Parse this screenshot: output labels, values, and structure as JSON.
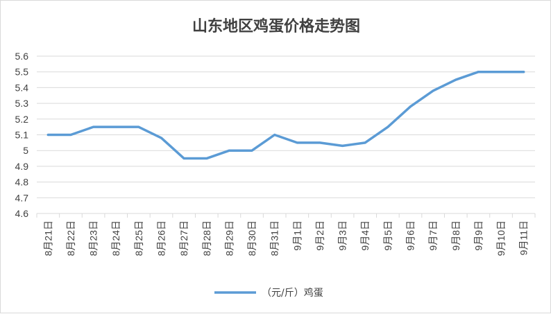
{
  "chart_data": {
    "type": "line",
    "title": "山东地区鸡蛋价格走势图",
    "xlabel": "",
    "ylabel": "",
    "ylim": [
      4.6,
      5.6
    ],
    "yticks": [
      "5.6",
      "5.5",
      "5.4",
      "5.3",
      "5.2",
      "5.1",
      "5",
      "4.9",
      "4.8",
      "4.7",
      "4.6"
    ],
    "categories": [
      "8月21日",
      "8月22日",
      "8月23日",
      "8月24日",
      "8月25日",
      "8月26日",
      "8月27日",
      "8月28日",
      "8月29日",
      "8月30日",
      "8月31日",
      "9月1日",
      "9月2日",
      "9月3日",
      "9月4日",
      "9月5日",
      "9月6日",
      "9月7日",
      "9月8日",
      "9月9日",
      "9月10日",
      "9月11日"
    ],
    "series": [
      {
        "name": "（元/斤）鸡蛋",
        "color": "#5b9bd5",
        "values": [
          5.1,
          5.1,
          5.15,
          5.15,
          5.15,
          5.08,
          4.95,
          4.95,
          5.0,
          5.0,
          5.1,
          5.05,
          5.05,
          5.03,
          5.05,
          5.15,
          5.28,
          5.38,
          5.45,
          5.5,
          5.5,
          5.5
        ]
      }
    ],
    "grid": true,
    "legend": "bottom"
  }
}
